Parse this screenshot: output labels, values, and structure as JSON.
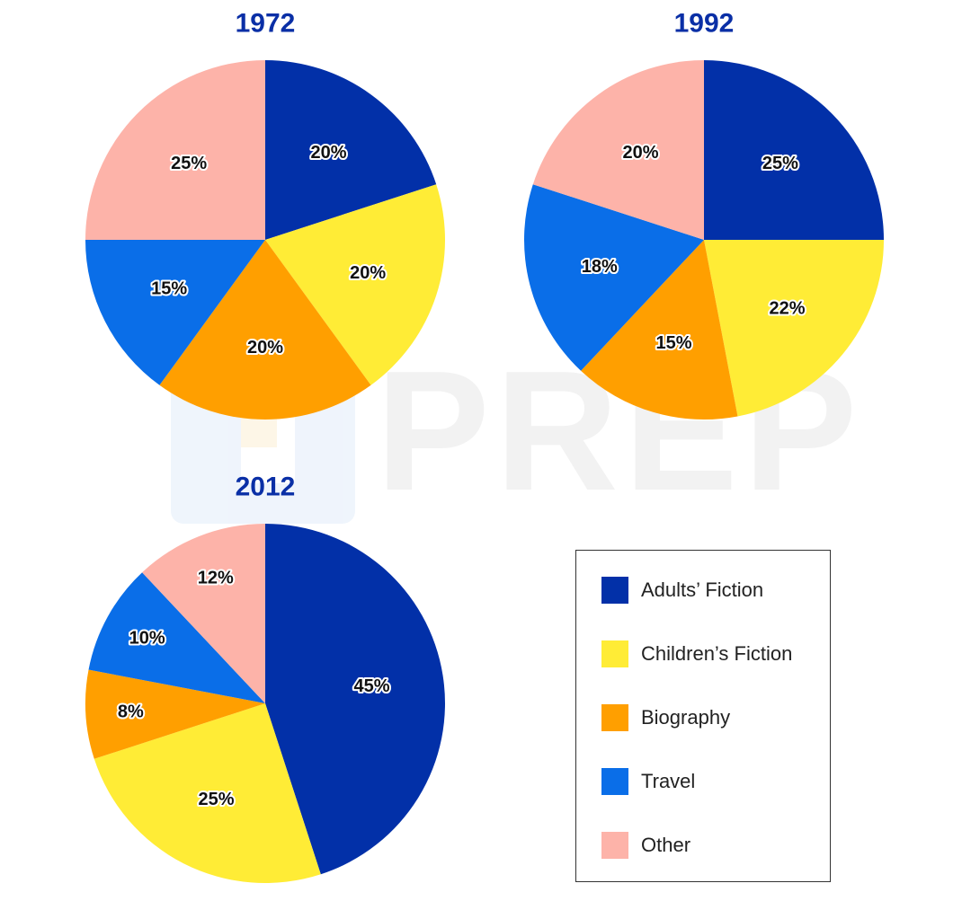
{
  "watermark": {
    "text": "PREP"
  },
  "colors": {
    "Adults' Fiction": "#0230a8",
    "Children's Fiction": "#ffec36",
    "Biography": "#ff9f00",
    "Travel": "#0a6ee8",
    "Other": "#fdb3a9"
  },
  "legend": {
    "items": [
      {
        "label": "Adults’ Fiction",
        "color": "#0230a8"
      },
      {
        "label": "Children’s Fiction",
        "color": "#ffec36"
      },
      {
        "label": "Biography",
        "color": "#ff9f00"
      },
      {
        "label": "Travel",
        "color": "#0a6ee8"
      },
      {
        "label": "Other",
        "color": "#fdb3a9"
      }
    ]
  },
  "chart_data": [
    {
      "type": "pie",
      "title": "1972",
      "categories": [
        "Adults’ Fiction",
        "Children’s Fiction",
        "Biography",
        "Travel",
        "Other"
      ],
      "values": [
        20,
        20,
        20,
        15,
        25
      ],
      "labels": [
        "20%",
        "20%",
        "20%",
        "15%",
        "25%"
      ],
      "start": "12 o'clock, clockwise"
    },
    {
      "type": "pie",
      "title": "1992",
      "categories": [
        "Adults’ Fiction",
        "Children’s Fiction",
        "Biography",
        "Travel",
        "Other"
      ],
      "values": [
        25,
        22,
        15,
        18,
        20
      ],
      "labels": [
        "25%",
        "22%",
        "15%",
        "18%",
        "20%"
      ],
      "start": "12 o'clock, clockwise"
    },
    {
      "type": "pie",
      "title": "2012",
      "categories": [
        "Adults’ Fiction",
        "Children’s Fiction",
        "Biography",
        "Travel",
        "Other"
      ],
      "values": [
        45,
        25,
        8,
        10,
        12
      ],
      "labels": [
        "45%",
        "25%",
        "8%",
        "10%",
        "12%"
      ],
      "start": "12 o'clock, clockwise"
    }
  ]
}
